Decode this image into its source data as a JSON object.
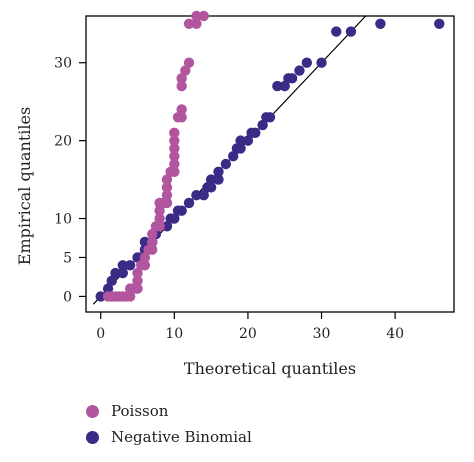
{
  "chart_data": {
    "type": "scatter",
    "title": "",
    "xlabel": "Theoretical quantiles",
    "ylabel": "Empirical quantiles",
    "xlim": [
      -2,
      48
    ],
    "ylim": [
      -2,
      36
    ],
    "xticks": [
      0,
      10,
      20,
      30,
      40
    ],
    "yticks": [
      0,
      5,
      10,
      20,
      30
    ],
    "grid": false,
    "legend_position": "bottom-left",
    "reference_line": {
      "from": [
        -1,
        -1
      ],
      "to": [
        36,
        36
      ],
      "color": "#000000"
    },
    "series": [
      {
        "name": "Poisson",
        "color": "#b0559e",
        "points": [
          [
            1,
            0
          ],
          [
            1.5,
            0
          ],
          [
            2,
            0
          ],
          [
            2.5,
            0
          ],
          [
            3,
            0
          ],
          [
            3.5,
            0
          ],
          [
            4,
            0
          ],
          [
            4,
            1
          ],
          [
            4.5,
            1
          ],
          [
            5,
            1
          ],
          [
            5,
            2
          ],
          [
            5,
            3
          ],
          [
            5.5,
            4
          ],
          [
            6,
            4
          ],
          [
            6,
            5
          ],
          [
            6.5,
            6
          ],
          [
            7,
            6
          ],
          [
            7,
            7
          ],
          [
            7,
            8
          ],
          [
            7.5,
            9
          ],
          [
            8,
            9
          ],
          [
            8,
            10
          ],
          [
            8,
            11
          ],
          [
            8,
            12
          ],
          [
            8.5,
            12
          ],
          [
            9,
            12
          ],
          [
            9,
            13
          ],
          [
            9,
            14
          ],
          [
            9,
            15
          ],
          [
            9.5,
            16
          ],
          [
            10,
            16
          ],
          [
            10,
            17
          ],
          [
            10,
            18
          ],
          [
            10,
            19
          ],
          [
            10,
            20
          ],
          [
            10,
            21
          ],
          [
            10.5,
            23
          ],
          [
            11,
            23
          ],
          [
            11,
            24
          ],
          [
            11,
            27
          ],
          [
            11,
            28
          ],
          [
            11.5,
            29
          ],
          [
            12,
            30
          ],
          [
            12,
            35
          ],
          [
            13,
            35
          ],
          [
            13,
            36
          ],
          [
            14,
            36
          ]
        ]
      },
      {
        "name": "Negative Binomial",
        "color": "#3b2b86",
        "points": [
          [
            0,
            0
          ],
          [
            1,
            1
          ],
          [
            1.5,
            2
          ],
          [
            2,
            3
          ],
          [
            3,
            3
          ],
          [
            3,
            4
          ],
          [
            4,
            4
          ],
          [
            5,
            5
          ],
          [
            5.5,
            5
          ],
          [
            6,
            6
          ],
          [
            6,
            7
          ],
          [
            7,
            7
          ],
          [
            7.5,
            8
          ],
          [
            8,
            9
          ],
          [
            9,
            9
          ],
          [
            9.5,
            10
          ],
          [
            10,
            10
          ],
          [
            10.5,
            11
          ],
          [
            11,
            11
          ],
          [
            12,
            12
          ],
          [
            13,
            13
          ],
          [
            14,
            13
          ],
          [
            14.5,
            14
          ],
          [
            15,
            14
          ],
          [
            15,
            15
          ],
          [
            16,
            15
          ],
          [
            16,
            16
          ],
          [
            17,
            17
          ],
          [
            18,
            18
          ],
          [
            18.5,
            19
          ],
          [
            19,
            19
          ],
          [
            19,
            20
          ],
          [
            20,
            20
          ],
          [
            20.5,
            21
          ],
          [
            21,
            21
          ],
          [
            22,
            22
          ],
          [
            22.5,
            23
          ],
          [
            23,
            23
          ],
          [
            24,
            27
          ],
          [
            25,
            27
          ],
          [
            25.5,
            28
          ],
          [
            26,
            28
          ],
          [
            27,
            29
          ],
          [
            28,
            30
          ],
          [
            30,
            30
          ],
          [
            32,
            34
          ],
          [
            34,
            34
          ],
          [
            38,
            35
          ],
          [
            46,
            35
          ]
        ]
      }
    ]
  }
}
